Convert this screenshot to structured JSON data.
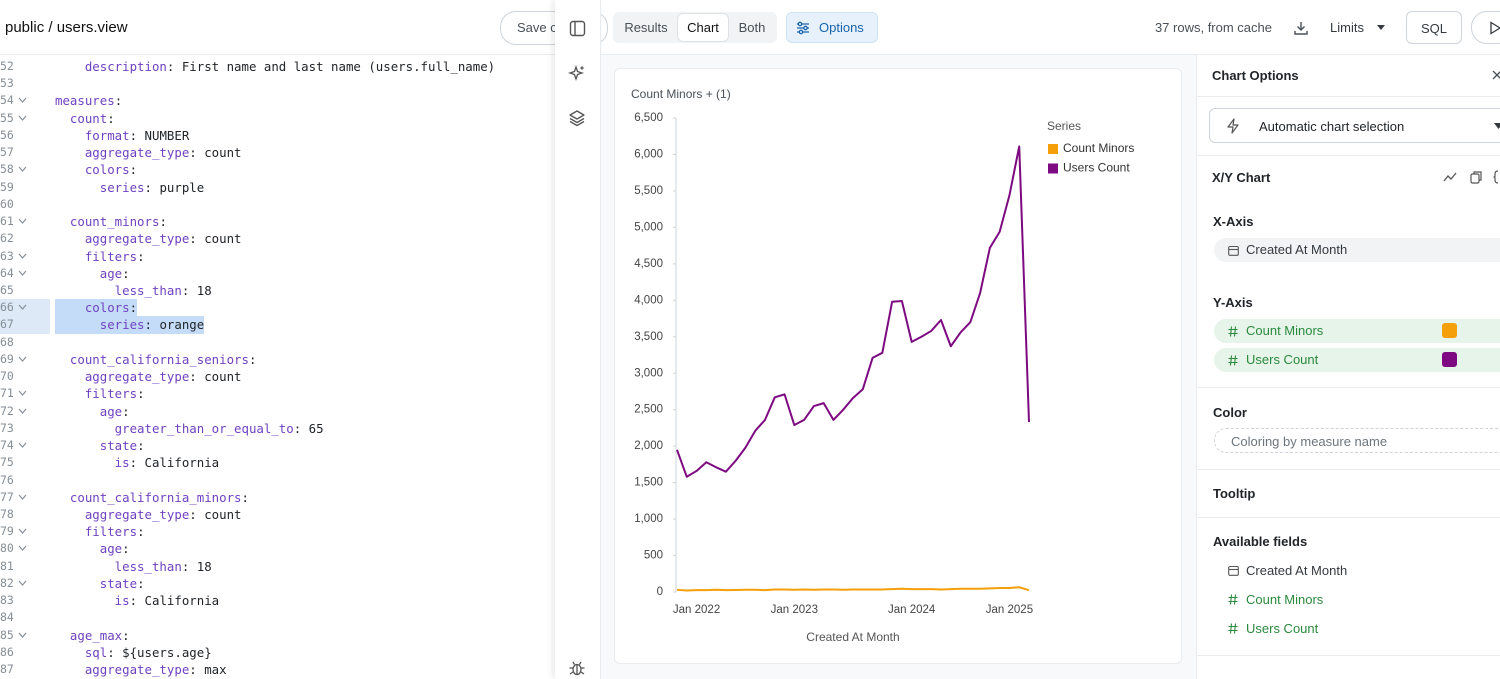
{
  "editor": {
    "title": "public / users.view",
    "save_button": "Save c",
    "lines": [
      {
        "n": "52",
        "key": "    description",
        "rest": ": First name and last name (users.full_name)"
      },
      {
        "n": "53"
      },
      {
        "n": "54",
        "key": "measures",
        "rest": ":",
        "fold": true
      },
      {
        "n": "55",
        "key": "  count",
        "rest": ":",
        "fold": true
      },
      {
        "n": "56",
        "key": "    format",
        "rest": ": NUMBER"
      },
      {
        "n": "57",
        "key": "    aggregate_type",
        "rest": ": count"
      },
      {
        "n": "58",
        "key": "    colors",
        "rest": ":",
        "fold": true
      },
      {
        "n": "59",
        "key": "      series",
        "rest": ": purple"
      },
      {
        "n": "60"
      },
      {
        "n": "61",
        "key": "  count_minors",
        "rest": ":",
        "fold": true
      },
      {
        "n": "62",
        "key": "    aggregate_type",
        "rest": ": count"
      },
      {
        "n": "63",
        "key": "    filters",
        "rest": ":",
        "fold": true
      },
      {
        "n": "64",
        "key": "      age",
        "rest": ":",
        "fold": true
      },
      {
        "n": "65",
        "key": "        less_than",
        "rest": ": 18"
      },
      {
        "n": "66",
        "key": "    colors",
        "rest": ":",
        "fold": true,
        "selected": true
      },
      {
        "n": "67",
        "key": "      series",
        "rest": ": orange",
        "selected": true
      },
      {
        "n": "68"
      },
      {
        "n": "69",
        "key": "  count_california_seniors",
        "rest": ":",
        "fold": true
      },
      {
        "n": "70",
        "key": "    aggregate_type",
        "rest": ": count"
      },
      {
        "n": "71",
        "key": "    filters",
        "rest": ":",
        "fold": true
      },
      {
        "n": "72",
        "key": "      age",
        "rest": ":",
        "fold": true
      },
      {
        "n": "73",
        "key": "        greater_than_or_equal_to",
        "rest": ": 65"
      },
      {
        "n": "74",
        "key": "      state",
        "rest": ":",
        "fold": true
      },
      {
        "n": "75",
        "key": "        is",
        "rest": ": California"
      },
      {
        "n": "76"
      },
      {
        "n": "77",
        "key": "  count_california_minors",
        "rest": ":",
        "fold": true
      },
      {
        "n": "78",
        "key": "    aggregate_type",
        "rest": ": count"
      },
      {
        "n": "79",
        "key": "    filters",
        "rest": ":",
        "fold": true
      },
      {
        "n": "80",
        "key": "      age",
        "rest": ":",
        "fold": true
      },
      {
        "n": "81",
        "key": "        less_than",
        "rest": ": 18"
      },
      {
        "n": "82",
        "key": "      state",
        "rest": ":",
        "fold": true
      },
      {
        "n": "83",
        "key": "        is",
        "rest": ": California"
      },
      {
        "n": "84"
      },
      {
        "n": "85",
        "key": "  age_max",
        "rest": ":",
        "fold": true
      },
      {
        "n": "86",
        "key": "    sql",
        "rest": ": ${users.age}"
      },
      {
        "n": "87",
        "key": "    aggregate_type",
        "rest": ": max"
      }
    ]
  },
  "toolbar": {
    "tabs": [
      "Results",
      "Chart",
      "Both"
    ],
    "active_tab": 1,
    "options": "Options",
    "status": "37 rows, from cache",
    "limits": "Limits",
    "sql": "SQL"
  },
  "chart_data": {
    "type": "line",
    "title": "Count Minors + (1)",
    "x_label": "Created At Month",
    "legend_title": "Series",
    "legend": "right",
    "grid": false,
    "categories": [
      null,
      null,
      "Jan 2022",
      null,
      null,
      null,
      null,
      null,
      null,
      null,
      null,
      null,
      "Jan 2023",
      null,
      null,
      null,
      null,
      null,
      null,
      null,
      null,
      null,
      null,
      null,
      "Jan 2024",
      null,
      null,
      null,
      null,
      null,
      null,
      null,
      null,
      null,
      "Jan 2025",
      null,
      null
    ],
    "series": [
      {
        "name": "Count Minors",
        "color": "#f59f0a",
        "values": [
          30,
          20,
          25,
          25,
          30,
          25,
          28,
          30,
          30,
          25,
          35,
          35,
          30,
          35,
          30,
          35,
          35,
          30,
          35,
          35,
          35,
          35,
          40,
          45,
          40,
          40,
          40,
          35,
          40,
          45,
          45,
          45,
          50,
          55,
          55,
          65,
          25
        ]
      },
      {
        "name": "Users Count",
        "color": "#7d0a80",
        "values": [
          1950,
          1580,
          1660,
          1780,
          1710,
          1650,
          1800,
          1980,
          2210,
          2360,
          2670,
          2710,
          2290,
          2360,
          2550,
          2590,
          2360,
          2500,
          2660,
          2780,
          3210,
          3280,
          3980,
          3990,
          3430,
          3500,
          3580,
          3730,
          3370,
          3560,
          3700,
          4100,
          4720,
          4940,
          5440,
          6110,
          2330
        ]
      }
    ],
    "ylim": [
      0,
      6500
    ],
    "yticks": [
      0,
      500,
      {
        "value": 1000,
        "label": "1,000"
      },
      {
        "value": 1500,
        "label": "1,500"
      },
      {
        "value": 2000,
        "label": "2,000"
      },
      {
        "value": 2500,
        "label": "2,500"
      },
      {
        "value": 3000,
        "label": "3,000"
      },
      {
        "value": 3500,
        "label": "3,500"
      },
      {
        "value": 4000,
        "label": "4,000"
      },
      {
        "value": 4500,
        "label": "4,500"
      },
      {
        "value": 5000,
        "label": "5,000"
      },
      {
        "value": 5500,
        "label": "5,500"
      },
      {
        "value": 6000,
        "label": "6,000"
      },
      {
        "value": 6500,
        "label": "6,500"
      }
    ]
  },
  "chart_options": {
    "title": "Chart Options",
    "chart_selection": "Automatic chart selection",
    "chart_kind": "X/Y Chart",
    "x_axis": {
      "label": "X-Axis",
      "field": "Created At Month"
    },
    "y_axis": {
      "label": "Y-Axis",
      "fields": [
        "Count Minors",
        "Users Count"
      ]
    },
    "color": {
      "label": "Color",
      "placeholder": "Coloring by measure name"
    },
    "tooltip": "Tooltip",
    "available_fields": {
      "label": "Available fields",
      "fields": [
        {
          "name": "Created At Month",
          "kind": "date"
        },
        {
          "name": "Count Minors",
          "kind": "number"
        },
        {
          "name": "Users Count",
          "kind": "number"
        }
      ]
    }
  }
}
